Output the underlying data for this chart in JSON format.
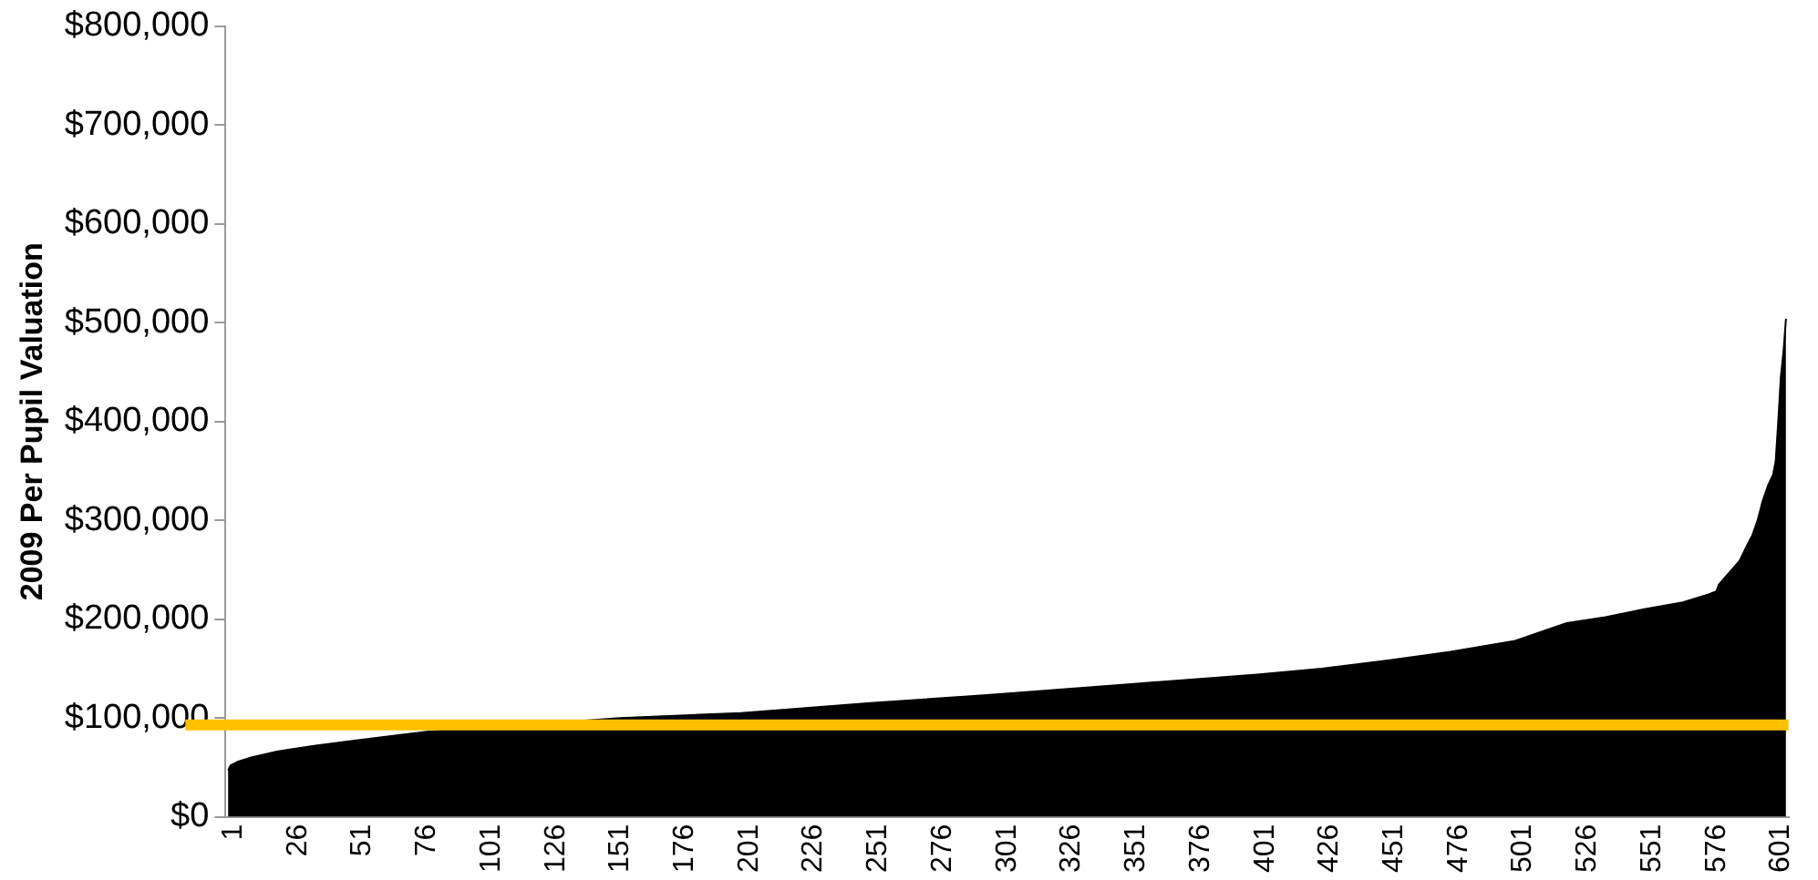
{
  "chart_data": {
    "type": "area",
    "ylabel": "2009 Per Pupil Valuation",
    "x": [
      1,
      2,
      5,
      10,
      15,
      20,
      25,
      35,
      50,
      65,
      78,
      153,
      200,
      250,
      300,
      350,
      400,
      425,
      450,
      475,
      500,
      510,
      520,
      535,
      550,
      565,
      575,
      578,
      579,
      583,
      587,
      590,
      592,
      594,
      596,
      598,
      600,
      601,
      602,
      603,
      604,
      605
    ],
    "values": [
      47000,
      52000,
      56000,
      60000,
      63000,
      66000,
      68000,
      72000,
      77000,
      82000,
      86000,
      100000,
      105000,
      115000,
      124000,
      134000,
      144000,
      150000,
      158000,
      167000,
      178000,
      187000,
      196000,
      202000,
      210000,
      217000,
      225000,
      228000,
      235000,
      247000,
      259000,
      275000,
      285000,
      300000,
      320000,
      335000,
      346000,
      360000,
      400000,
      445000,
      470000,
      504000
    ],
    "color": "#000000",
    "xlim": [
      0,
      606
    ],
    "xticks": [
      1,
      26,
      51,
      76,
      101,
      126,
      151,
      176,
      201,
      226,
      251,
      276,
      301,
      326,
      351,
      376,
      401,
      426,
      451,
      476,
      501,
      526,
      551,
      576,
      601
    ],
    "ylim": [
      0,
      800000
    ],
    "yticks": [
      {
        "value": 0,
        "label": "$0"
      },
      {
        "value": 100000,
        "label": "$100,000"
      },
      {
        "value": 200000,
        "label": "$200,000"
      },
      {
        "value": 300000,
        "label": "$300,000"
      },
      {
        "value": 400000,
        "label": "$400,000"
      },
      {
        "value": 500000,
        "label": "$500,000"
      },
      {
        "value": 600000,
        "label": "$600,000"
      },
      {
        "value": 700000,
        "label": "$700,000"
      },
      {
        "value": 800000,
        "label": "$800,000"
      }
    ],
    "ref_lines": [
      {
        "axis": "y",
        "value": 93000,
        "color": "#ffc000"
      }
    ],
    "grid": false,
    "legend": false,
    "marker": "none"
  }
}
